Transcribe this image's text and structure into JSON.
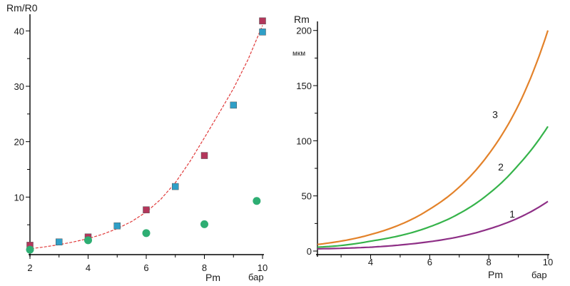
{
  "chart_data": [
    {
      "type": "scatter",
      "ylabel": "Rm/R0",
      "xlabel": "Pm",
      "x_unit": "бар",
      "xlim": [
        2,
        10
      ],
      "ylim": [
        0,
        43
      ],
      "x_ticks": [
        "2",
        "4",
        "6",
        "8",
        "10"
      ],
      "y_ticks": [
        "10",
        "20",
        "30",
        "40"
      ],
      "grid": false,
      "series": [
        {
          "marker": "square",
          "color": "#b3365b",
          "x": [
            2,
            4,
            6,
            8,
            10
          ],
          "y": [
            1.3,
            2.8,
            7.7,
            17.5,
            41.8
          ]
        },
        {
          "marker": "square",
          "color": "#2f9fc7",
          "x": [
            3,
            5,
            7,
            9,
            10
          ],
          "y": [
            1.9,
            4.8,
            11.9,
            26.6,
            39.8
          ]
        },
        {
          "marker": "circle",
          "color": "#2eae73",
          "x": [
            2,
            4,
            6,
            8,
            9.8
          ],
          "y": [
            0.5,
            2.2,
            3.5,
            5.1,
            9.3
          ]
        },
        {
          "type": "line",
          "style": "dashed",
          "color": "#e03a3a",
          "x": [
            1.9,
            2.5,
            3,
            3.5,
            4,
            4.5,
            5,
            5.5,
            6,
            6.5,
            7,
            7.5,
            8,
            8.5,
            9,
            9.5,
            10
          ],
          "y": [
            0.6,
            1.0,
            1.4,
            1.9,
            2.5,
            3.3,
            4.3,
            5.6,
            7.3,
            9.6,
            12.6,
            16.4,
            20.7,
            25.1,
            29.6,
            34.8,
            41.0
          ]
        }
      ]
    },
    {
      "type": "line",
      "ylabel": "Rm",
      "y_unit": "мкм",
      "xlabel": "Pm",
      "x_unit": "бар",
      "xlim": [
        2.2,
        10
      ],
      "ylim": [
        0,
        205
      ],
      "x_ticks": [
        "4",
        "6",
        "8",
        "10"
      ],
      "y_ticks": [
        "0",
        "50",
        "100",
        "150",
        "200"
      ],
      "grid": false,
      "series": [
        {
          "label": "1",
          "color": "#8e2f86",
          "x": [
            2.2,
            3,
            4,
            5,
            6,
            7,
            8,
            9,
            10
          ],
          "y": [
            2,
            2.5,
            3.5,
            5.5,
            8.5,
            13,
            20,
            30,
            45
          ]
        },
        {
          "label": "2",
          "color": "#35b34a",
          "x": [
            2.2,
            3,
            4,
            5,
            6,
            7,
            8,
            9,
            10
          ],
          "y": [
            3.5,
            5,
            9,
            14,
            22,
            34,
            52,
            78,
            113
          ]
        },
        {
          "label": "3",
          "color": "#e3822a",
          "x": [
            2.2,
            3,
            4,
            5,
            6,
            7,
            8,
            9,
            10
          ],
          "y": [
            6,
            9,
            15,
            24,
            38,
            58,
            88,
            132,
            200
          ]
        }
      ]
    }
  ]
}
